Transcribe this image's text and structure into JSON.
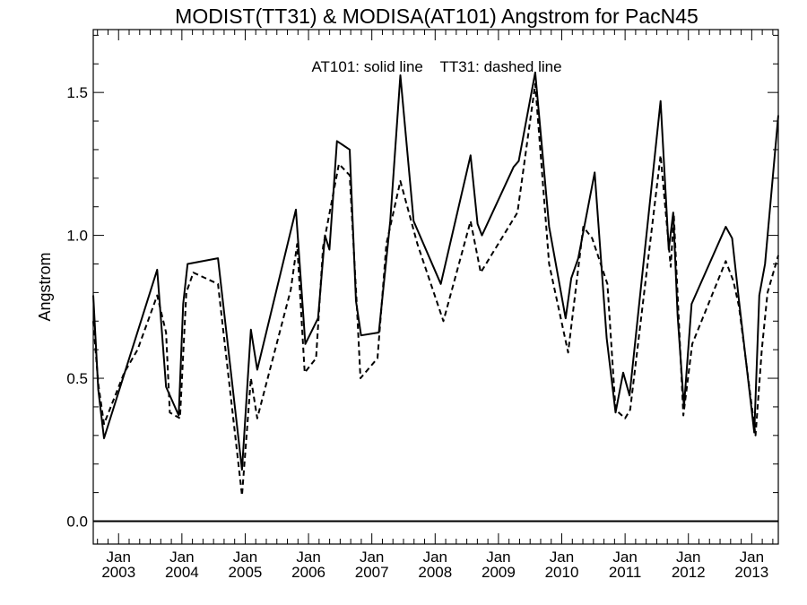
{
  "chart_data": {
    "type": "line",
    "title": "MODIST(TT31) & MODISA(AT101)  Angstrom for PacN45",
    "annotation": "AT101: solid line    TT31: dashed line",
    "xlabel": "",
    "ylabel": "Angstrom",
    "xlim": [
      2002.6,
      2013.42
    ],
    "ylim": [
      -0.08,
      1.72
    ],
    "grid": false,
    "y_ticks": [
      {
        "value": 0.0,
        "label": "0.0"
      },
      {
        "value": 0.5,
        "label": "0.5"
      },
      {
        "value": 1.0,
        "label": "1.0"
      },
      {
        "value": 1.5,
        "label": "1.5"
      }
    ],
    "x_ticks": [
      {
        "value": 2003.0,
        "month": "Jan",
        "year": "2003"
      },
      {
        "value": 2004.0,
        "month": "Jan",
        "year": "2004"
      },
      {
        "value": 2005.0,
        "month": "Jan",
        "year": "2005"
      },
      {
        "value": 2006.0,
        "month": "Jan",
        "year": "2006"
      },
      {
        "value": 2007.0,
        "month": "Jan",
        "year": "2007"
      },
      {
        "value": 2008.0,
        "month": "Jan",
        "year": "2008"
      },
      {
        "value": 2009.0,
        "month": "Jan",
        "year": "2009"
      },
      {
        "value": 2010.0,
        "month": "Jan",
        "year": "2010"
      },
      {
        "value": 2011.0,
        "month": "Jan",
        "year": "2011"
      },
      {
        "value": 2012.0,
        "month": "Jan",
        "year": "2012"
      },
      {
        "value": 2013.0,
        "month": "Jan",
        "year": "2013"
      }
    ],
    "reference_line": {
      "y": 0.0
    },
    "series": [
      {
        "name": "AT101",
        "style": "solid",
        "color": "#000000",
        "points": [
          [
            2002.6,
            0.79
          ],
          [
            2002.68,
            0.46
          ],
          [
            2002.77,
            0.29
          ],
          [
            2003.61,
            0.88
          ],
          [
            2003.75,
            0.47
          ],
          [
            2003.95,
            0.37
          ],
          [
            2004.02,
            0.76
          ],
          [
            2004.09,
            0.9
          ],
          [
            2004.57,
            0.92
          ],
          [
            2004.95,
            0.18
          ],
          [
            2005.09,
            0.67
          ],
          [
            2005.19,
            0.53
          ],
          [
            2005.8,
            1.09
          ],
          [
            2005.95,
            0.62
          ],
          [
            2006.15,
            0.71
          ],
          [
            2006.26,
            1.0
          ],
          [
            2006.33,
            0.95
          ],
          [
            2006.45,
            1.33
          ],
          [
            2006.65,
            1.3
          ],
          [
            2006.75,
            0.77
          ],
          [
            2006.83,
            0.65
          ],
          [
            2007.11,
            0.66
          ],
          [
            2007.29,
            1.05
          ],
          [
            2007.45,
            1.56
          ],
          [
            2007.66,
            1.05
          ],
          [
            2008.09,
            0.83
          ],
          [
            2008.56,
            1.28
          ],
          [
            2008.67,
            1.04
          ],
          [
            2008.74,
            1.0
          ],
          [
            2009.24,
            1.24
          ],
          [
            2009.32,
            1.26
          ],
          [
            2009.58,
            1.57
          ],
          [
            2009.8,
            1.03
          ],
          [
            2010.06,
            0.71
          ],
          [
            2010.15,
            0.85
          ],
          [
            2010.26,
            0.92
          ],
          [
            2010.52,
            1.22
          ],
          [
            2010.71,
            0.64
          ],
          [
            2010.85,
            0.38
          ],
          [
            2010.97,
            0.52
          ],
          [
            2011.07,
            0.44
          ],
          [
            2011.56,
            1.47
          ],
          [
            2011.69,
            0.95
          ],
          [
            2011.76,
            1.08
          ],
          [
            2011.83,
            0.72
          ],
          [
            2011.93,
            0.4
          ],
          [
            2012.05,
            0.76
          ],
          [
            2012.59,
            1.03
          ],
          [
            2012.69,
            0.99
          ],
          [
            2012.8,
            0.77
          ],
          [
            2013.04,
            0.31
          ],
          [
            2013.12,
            0.79
          ],
          [
            2013.21,
            0.9
          ],
          [
            2013.42,
            1.42
          ]
        ]
      },
      {
        "name": "TT31",
        "style": "dashed",
        "color": "#000000",
        "points": [
          [
            2002.6,
            0.7
          ],
          [
            2002.68,
            0.48
          ],
          [
            2002.77,
            0.34
          ],
          [
            2003.09,
            0.52
          ],
          [
            2003.3,
            0.6
          ],
          [
            2003.61,
            0.79
          ],
          [
            2003.75,
            0.66
          ],
          [
            2003.81,
            0.38
          ],
          [
            2003.97,
            0.36
          ],
          [
            2004.07,
            0.8
          ],
          [
            2004.18,
            0.87
          ],
          [
            2004.57,
            0.83
          ],
          [
            2004.95,
            0.09
          ],
          [
            2005.09,
            0.5
          ],
          [
            2005.19,
            0.36
          ],
          [
            2005.72,
            0.81
          ],
          [
            2005.82,
            0.97
          ],
          [
            2005.94,
            0.52
          ],
          [
            2006.12,
            0.57
          ],
          [
            2006.23,
            0.96
          ],
          [
            2006.48,
            1.25
          ],
          [
            2006.65,
            1.21
          ],
          [
            2006.76,
            0.77
          ],
          [
            2006.82,
            0.5
          ],
          [
            2007.09,
            0.57
          ],
          [
            2007.23,
            0.97
          ],
          [
            2007.45,
            1.19
          ],
          [
            2007.72,
            0.97
          ],
          [
            2008.13,
            0.7
          ],
          [
            2008.56,
            1.05
          ],
          [
            2008.72,
            0.87
          ],
          [
            2009.3,
            1.08
          ],
          [
            2009.58,
            1.53
          ],
          [
            2009.8,
            0.9
          ],
          [
            2010.1,
            0.59
          ],
          [
            2010.34,
            1.03
          ],
          [
            2010.48,
            0.99
          ],
          [
            2010.72,
            0.83
          ],
          [
            2010.85,
            0.39
          ],
          [
            2011.0,
            0.36
          ],
          [
            2011.08,
            0.39
          ],
          [
            2011.56,
            1.28
          ],
          [
            2011.72,
            0.89
          ],
          [
            2011.77,
            1.07
          ],
          [
            2011.85,
            0.7
          ],
          [
            2011.92,
            0.37
          ],
          [
            2012.06,
            0.62
          ],
          [
            2012.59,
            0.91
          ],
          [
            2012.71,
            0.84
          ],
          [
            2012.8,
            0.75
          ],
          [
            2013.06,
            0.3
          ],
          [
            2013.16,
            0.6
          ],
          [
            2013.25,
            0.8
          ],
          [
            2013.42,
            0.93
          ]
        ]
      }
    ]
  }
}
